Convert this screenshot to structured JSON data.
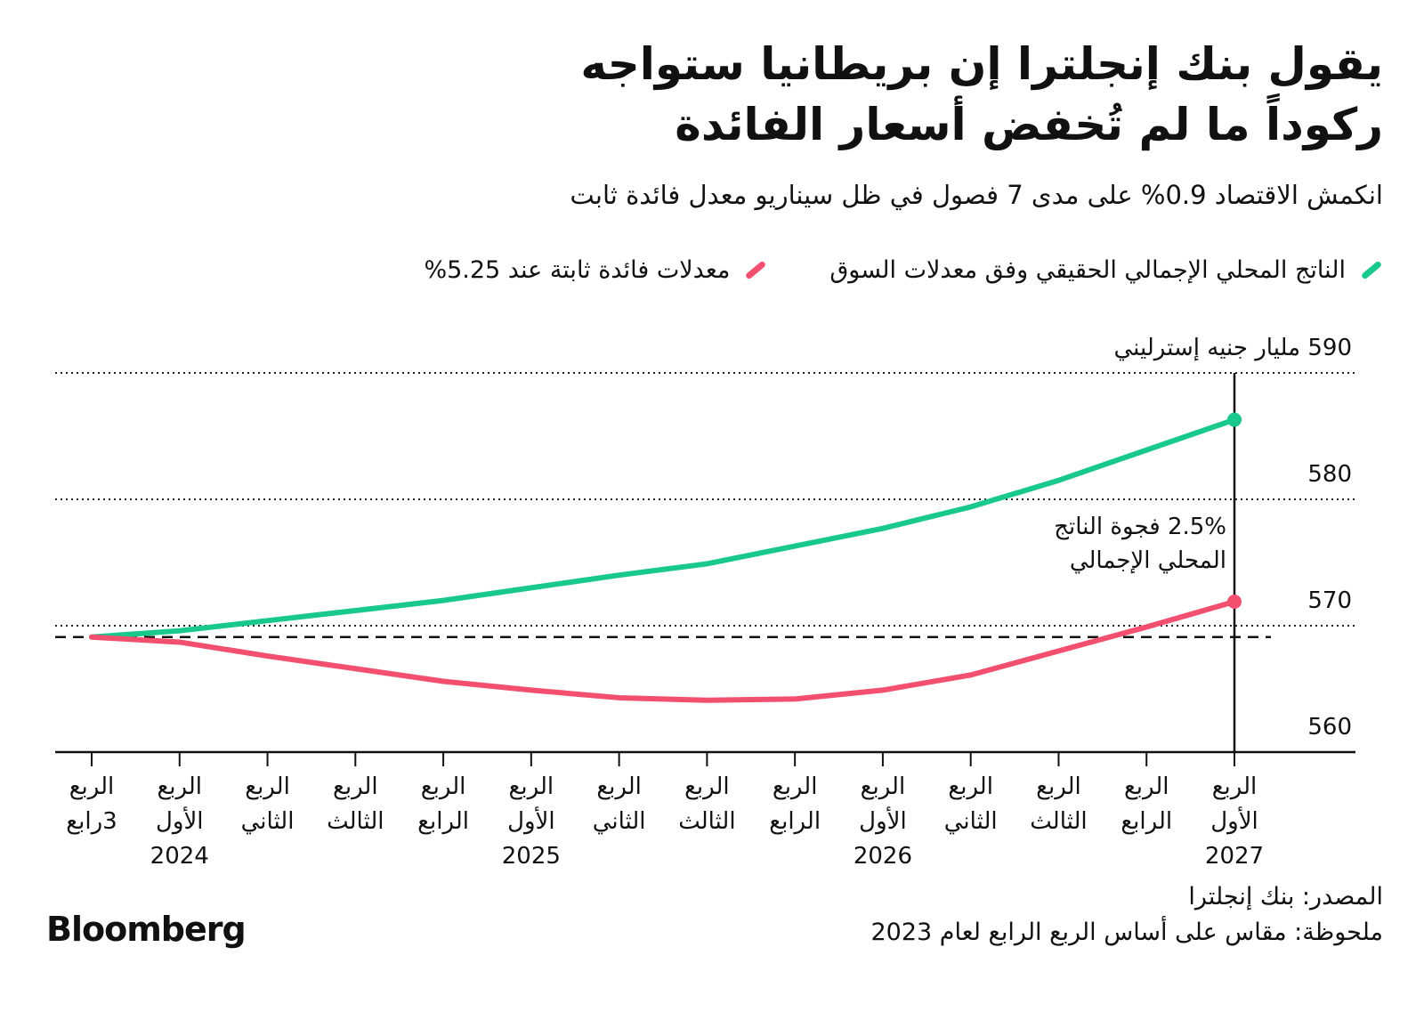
{
  "chart_data": {
    "type": "line",
    "title": [
      "يقول بنك إنجلترا إن بريطانيا ستواجه",
      "ركوداً ما لم تُخفض أسعار الفائدة"
    ],
    "subtitle": "انكمش الاقتصاد 0.9% على مدى 7 فصول في ظل سيناريو معدل فائدة ثابت",
    "categories": [
      [
        "الربع",
        "3رابع"
      ],
      [
        "الربع",
        "الأول",
        "2024"
      ],
      [
        "الربع",
        "الثاني"
      ],
      [
        "الربع",
        "الثالث"
      ],
      [
        "الربع",
        "الرابع"
      ],
      [
        "الربع",
        "الأول",
        "2025"
      ],
      [
        "الربع",
        "الثاني"
      ],
      [
        "الربع",
        "الثالث"
      ],
      [
        "الربع",
        "الرابع"
      ],
      [
        "الربع",
        "الأول",
        "2026"
      ],
      [
        "الربع",
        "الثاني"
      ],
      [
        "الربع",
        "الثالث"
      ],
      [
        "الربع",
        "الرابع"
      ],
      [
        "الربع",
        "الأول",
        "2027"
      ]
    ],
    "series": [
      {
        "name": "الناتج المحلي الإجمالي الحقيقي وفق معدلات السوق",
        "color": "#19c98b",
        "values": [
          569.1,
          569.6,
          570.4,
          571.2,
          572.0,
          573.0,
          574.0,
          574.9,
          576.3,
          577.7,
          579.4,
          581.5,
          583.9,
          586.3
        ]
      },
      {
        "name": "معدلات فائدة ثابتة عند 5.25%",
        "color": "#f2506e",
        "values": [
          569.1,
          568.7,
          567.6,
          566.6,
          565.6,
          564.9,
          564.3,
          564.1,
          564.2,
          564.9,
          566.1,
          568.0,
          569.9,
          571.9
        ]
      }
    ],
    "ylim": [
      560,
      590
    ],
    "yticks": [
      560,
      570,
      580,
      {
        "value": 590,
        "label": "590 مليار جنيه إسترليني"
      }
    ],
    "grid": true,
    "annotation": [
      "2.5% فجوة الناتج",
      "المحلي الإجمالي"
    ],
    "source": "المصدر: بنك إنجلترا",
    "note": "ملحوظة: مقاس على أساس الربع الرابع لعام 2023",
    "brand": "Bloomberg"
  }
}
